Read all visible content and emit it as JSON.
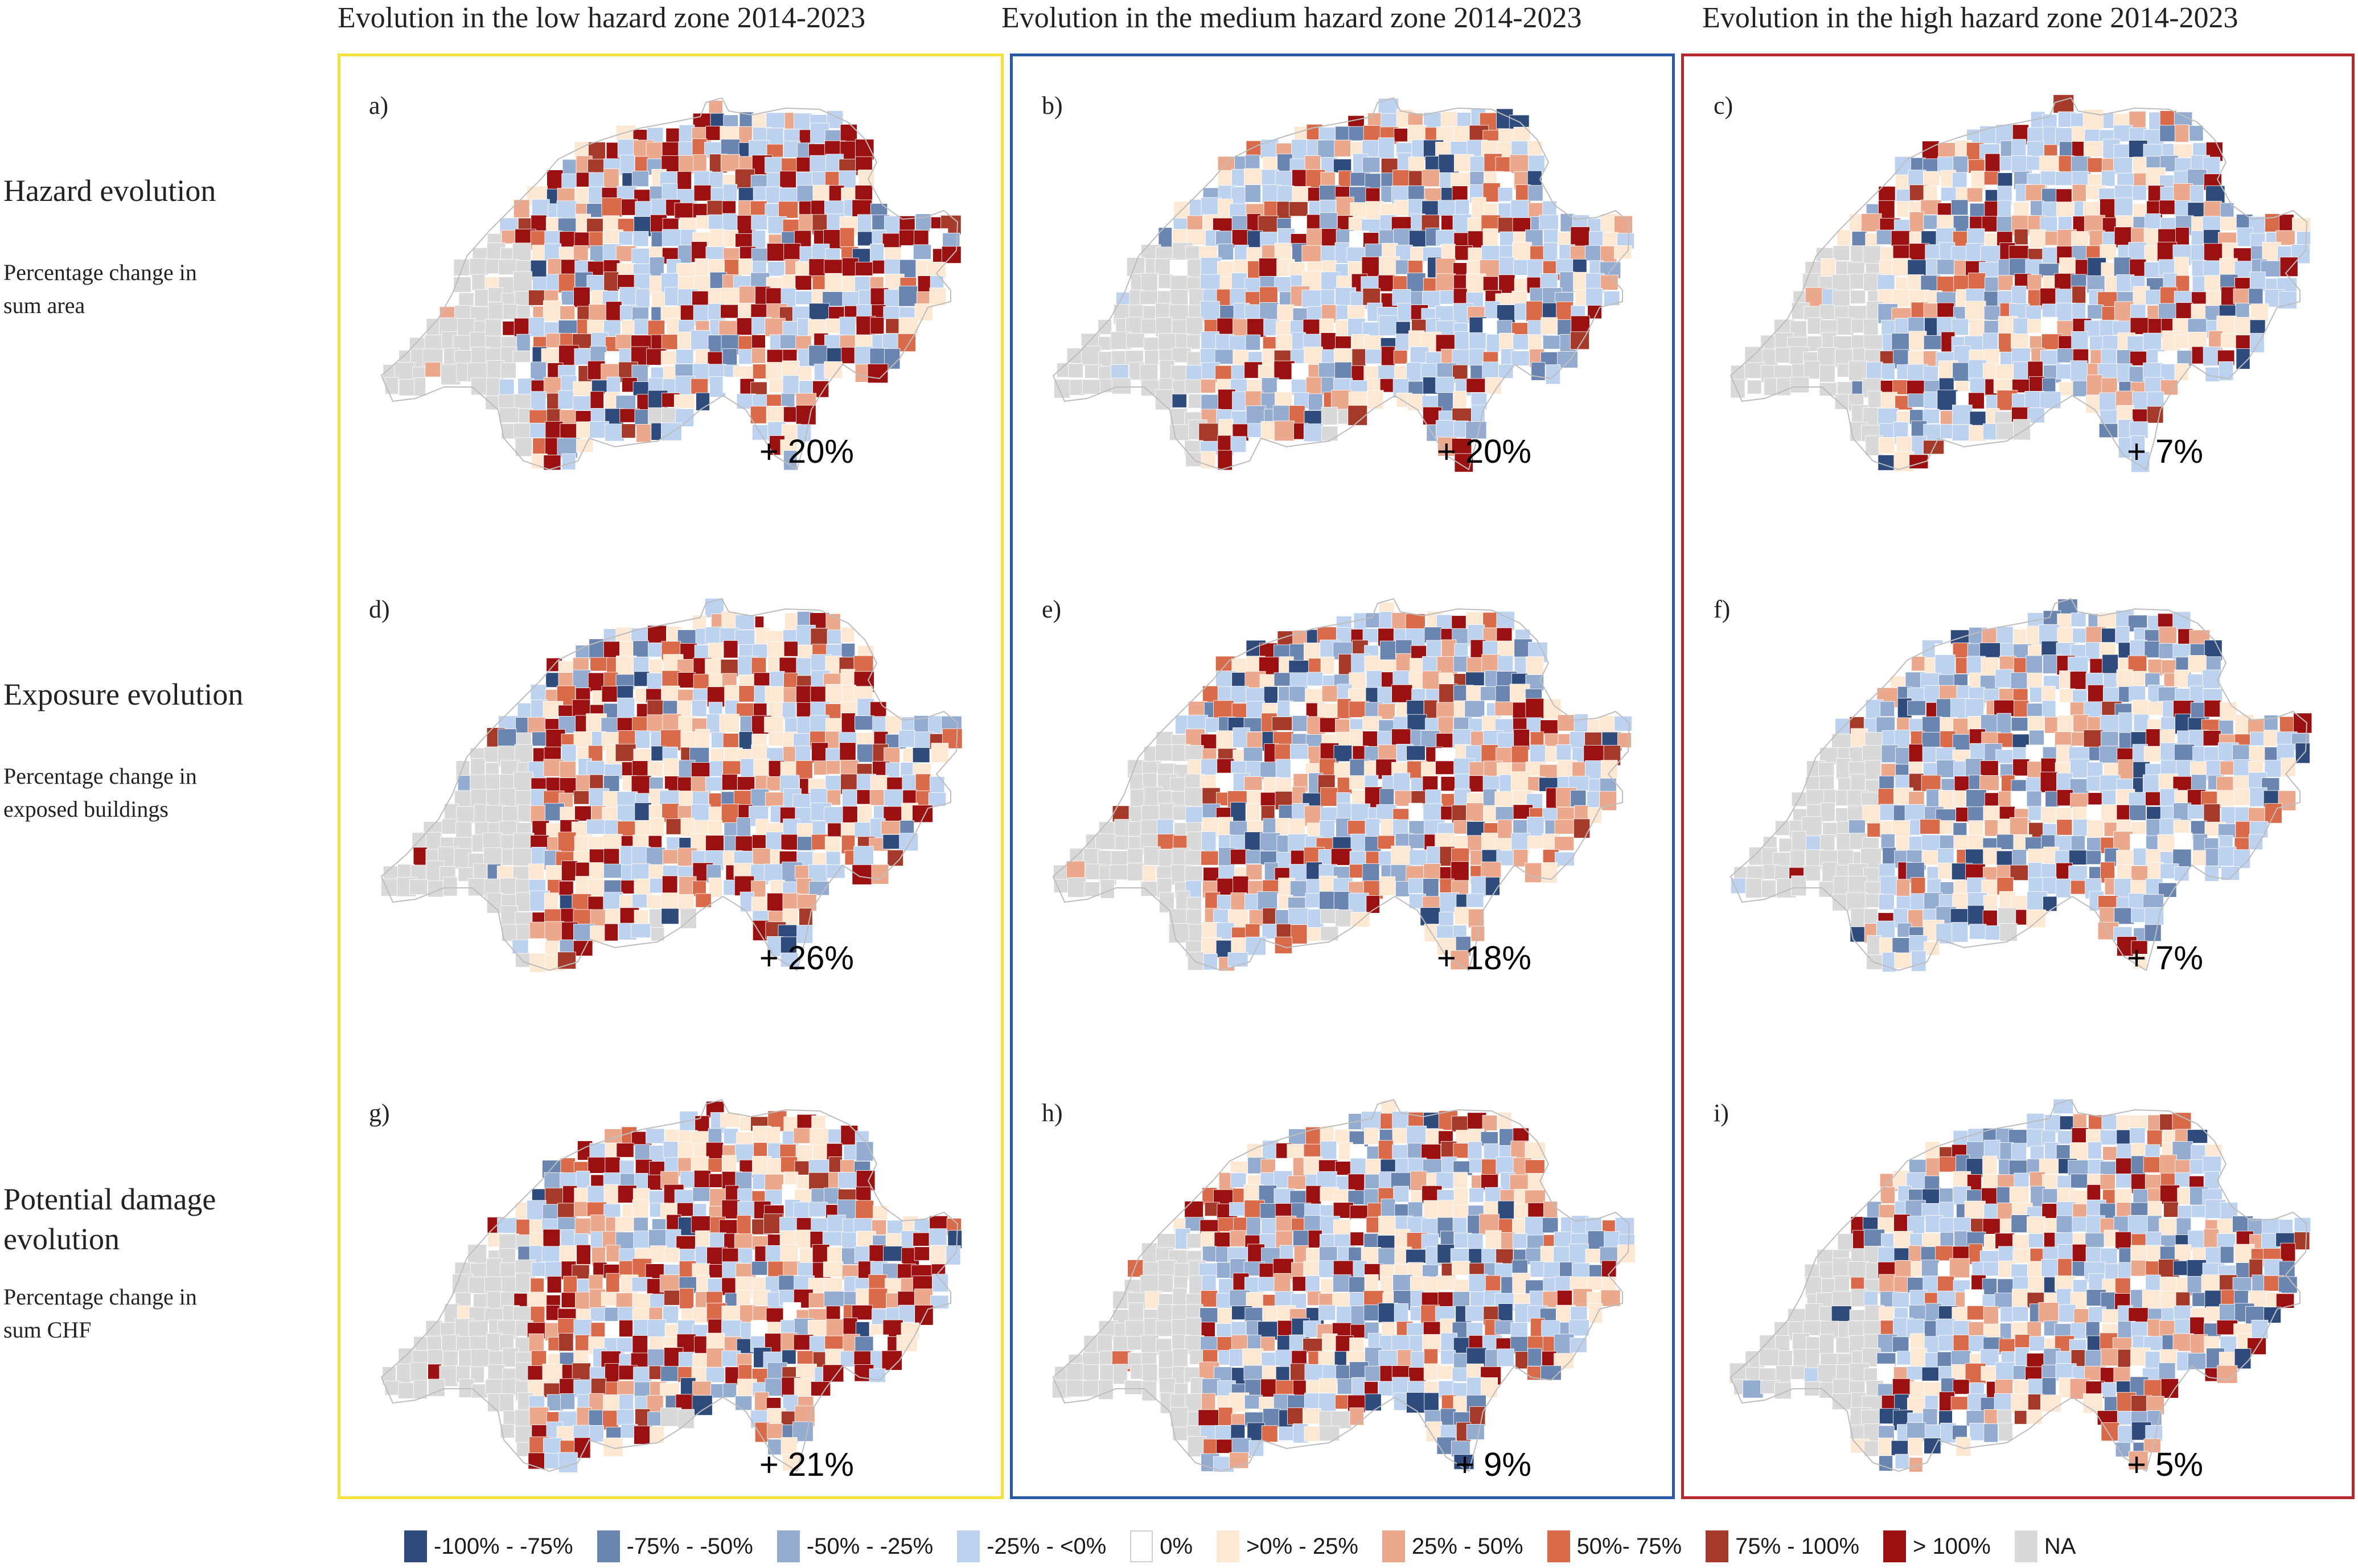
{
  "columns": [
    {
      "title": "Evolution in the low hazard zone 2014-2023",
      "frame_color": "#f4e13a"
    },
    {
      "title": "Evolution in the medium hazard zone 2014-2023",
      "frame_color": "#2b5aa5"
    },
    {
      "title": "Evolution in the high hazard zone 2014-2023",
      "frame_color": "#b52a2e"
    }
  ],
  "rows": [
    {
      "title": "Hazard evolution",
      "subtitle_line1": "Percentage change in",
      "subtitle_line2": "sum area"
    },
    {
      "title": "Exposure evolution",
      "subtitle_line1": "Percentage change in",
      "subtitle_line2": "exposed buildings"
    },
    {
      "title_line1": "Potential damage",
      "title_line2": "evolution",
      "subtitle_line1": "Percentage change in",
      "subtitle_line2": "sum CHF"
    }
  ],
  "panels": [
    {
      "letter": "a)",
      "total": "+ 20%",
      "distribution": [
        0.02,
        0.03,
        0.05,
        0.3,
        0.01,
        0.18,
        0.09,
        0.06,
        0.04,
        0.22
      ]
    },
    {
      "letter": "b)",
      "total": "+ 20%",
      "distribution": [
        0.03,
        0.05,
        0.1,
        0.34,
        0.01,
        0.2,
        0.09,
        0.06,
        0.03,
        0.09
      ]
    },
    {
      "letter": "c)",
      "total": "+ 7%",
      "distribution": [
        0.03,
        0.05,
        0.1,
        0.38,
        0.02,
        0.17,
        0.07,
        0.05,
        0.02,
        0.11
      ]
    },
    {
      "letter": "d)",
      "total": "+ 26%",
      "distribution": [
        0.02,
        0.03,
        0.06,
        0.27,
        0.01,
        0.2,
        0.11,
        0.07,
        0.04,
        0.19
      ]
    },
    {
      "letter": "e)",
      "total": "+ 18%",
      "distribution": [
        0.05,
        0.06,
        0.1,
        0.28,
        0.01,
        0.18,
        0.1,
        0.08,
        0.04,
        0.1
      ]
    },
    {
      "letter": "f)",
      "total": "+ 7%",
      "distribution": [
        0.04,
        0.07,
        0.13,
        0.31,
        0.02,
        0.19,
        0.09,
        0.06,
        0.02,
        0.07
      ]
    },
    {
      "letter": "g)",
      "total": "+ 21%",
      "distribution": [
        0.02,
        0.03,
        0.06,
        0.27,
        0.01,
        0.21,
        0.1,
        0.08,
        0.04,
        0.18
      ]
    },
    {
      "letter": "h)",
      "total": "+ 9%",
      "distribution": [
        0.06,
        0.07,
        0.1,
        0.28,
        0.01,
        0.2,
        0.09,
        0.07,
        0.03,
        0.09
      ]
    },
    {
      "letter": "i)",
      "total": "+ 5%",
      "distribution": [
        0.06,
        0.09,
        0.12,
        0.3,
        0.02,
        0.17,
        0.08,
        0.05,
        0.03,
        0.08
      ]
    }
  ],
  "legend": [
    {
      "label": "-100% - -75%",
      "color": "#2f4b7c"
    },
    {
      "label": "-75% - -50%",
      "color": "#6a86b0"
    },
    {
      "label": "-50% - -25%",
      "color": "#93acd0"
    },
    {
      "label": "-25% - <0%",
      "color": "#bcd2ee"
    },
    {
      "label": "0%",
      "color": "#ffffff"
    },
    {
      "label": ">0% - 25%",
      "color": "#fde9d3"
    },
    {
      "label": "25% - 50%",
      "color": "#eba88d"
    },
    {
      "label": "50%- 75%",
      "color": "#d96a4a"
    },
    {
      "label": "75% - 100%",
      "color": "#a63a2a"
    },
    {
      "label": "> 100%",
      "color": "#9b1010"
    },
    {
      "label": "NA",
      "color": "#d9d9d9"
    }
  ]
}
